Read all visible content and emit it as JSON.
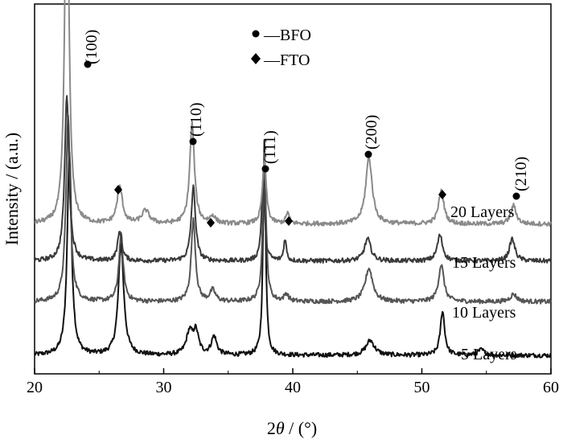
{
  "chart_data": {
    "type": "line",
    "xlabel_prefix": "2",
    "xlabel_symbol": "θ",
    "xlabel_suffix": " / (°)",
    "ylabel": "Intensity / (a.u.)",
    "xlim": [
      20,
      60
    ],
    "xticks": [
      "20",
      "30",
      "40",
      "50",
      "60"
    ],
    "legend": [
      {
        "marker": "circle",
        "label": "—BFO"
      },
      {
        "marker": "diamond",
        "label": "—FTO"
      }
    ],
    "series": [
      {
        "name": "5 Layers",
        "color": "#111111",
        "baseline": 0.05,
        "peaks": [
          {
            "x": 22.7,
            "h": 0.55,
            "w": 0.2
          },
          {
            "x": 26.7,
            "h": 0.3,
            "w": 0.25
          },
          {
            "x": 32.0,
            "h": 0.06,
            "w": 0.3
          },
          {
            "x": 32.5,
            "h": 0.06,
            "w": 0.25
          },
          {
            "x": 33.9,
            "h": 0.05,
            "w": 0.25
          },
          {
            "x": 37.8,
            "h": 0.58,
            "w": 0.12
          },
          {
            "x": 46.0,
            "h": 0.04,
            "w": 0.4
          },
          {
            "x": 51.6,
            "h": 0.12,
            "w": 0.2
          },
          {
            "x": 54.6,
            "h": 0.015,
            "w": 0.3
          }
        ]
      },
      {
        "name": "10 Layers",
        "color": "#555555",
        "baseline": 0.195,
        "peaks": [
          {
            "x": 22.6,
            "h": 0.5,
            "w": 0.2
          },
          {
            "x": 26.7,
            "h": 0.18,
            "w": 0.2
          },
          {
            "x": 32.3,
            "h": 0.22,
            "w": 0.2
          },
          {
            "x": 33.8,
            "h": 0.03,
            "w": 0.25
          },
          {
            "x": 37.8,
            "h": 0.4,
            "w": 0.15
          },
          {
            "x": 39.5,
            "h": 0.02,
            "w": 0.2
          },
          {
            "x": 45.9,
            "h": 0.09,
            "w": 0.35
          },
          {
            "x": 51.5,
            "h": 0.1,
            "w": 0.25
          },
          {
            "x": 57.1,
            "h": 0.02,
            "w": 0.3
          }
        ]
      },
      {
        "name": "15 Layers",
        "color": "#3a3a3a",
        "baseline": 0.305,
        "peaks": [
          {
            "x": 22.5,
            "h": 0.45,
            "w": 0.2
          },
          {
            "x": 26.6,
            "h": 0.08,
            "w": 0.2
          },
          {
            "x": 32.3,
            "h": 0.2,
            "w": 0.2
          },
          {
            "x": 37.7,
            "h": 0.22,
            "w": 0.15
          },
          {
            "x": 39.4,
            "h": 0.06,
            "w": 0.12
          },
          {
            "x": 45.8,
            "h": 0.06,
            "w": 0.3
          },
          {
            "x": 51.4,
            "h": 0.07,
            "w": 0.25
          },
          {
            "x": 57.0,
            "h": 0.06,
            "w": 0.25
          }
        ]
      },
      {
        "name": "20 Layers",
        "color": "#8a8a8a",
        "baseline": 0.405,
        "peaks": [
          {
            "x": 22.5,
            "h": 1.1,
            "w": 0.18
          },
          {
            "x": 26.6,
            "h": 0.1,
            "w": 0.25
          },
          {
            "x": 28.6,
            "h": 0.035,
            "w": 0.35
          },
          {
            "x": 32.2,
            "h": 0.27,
            "w": 0.22
          },
          {
            "x": 33.8,
            "h": 0.02,
            "w": 0.25
          },
          {
            "x": 37.8,
            "h": 0.17,
            "w": 0.18
          },
          {
            "x": 39.6,
            "h": 0.03,
            "w": 0.15
          },
          {
            "x": 45.9,
            "h": 0.18,
            "w": 0.3
          },
          {
            "x": 51.5,
            "h": 0.09,
            "w": 0.25
          },
          {
            "x": 57.1,
            "h": 0.05,
            "w": 0.25
          }
        ]
      }
    ],
    "peak_labels": [
      {
        "x": 24.3,
        "label": "(100)",
        "marker": "circle"
      },
      {
        "x": 32.2,
        "label": "(110)",
        "marker": "circle"
      },
      {
        "x": 37.8,
        "label": "(111)",
        "marker": "circle"
      },
      {
        "x": 45.9,
        "label": "(200)",
        "marker": "circle"
      },
      {
        "x": 57.2,
        "label": "(210)",
        "marker": "circle"
      }
    ],
    "fto_markers": [
      26.6,
      33.8,
      39.6,
      51.6
    ]
  }
}
